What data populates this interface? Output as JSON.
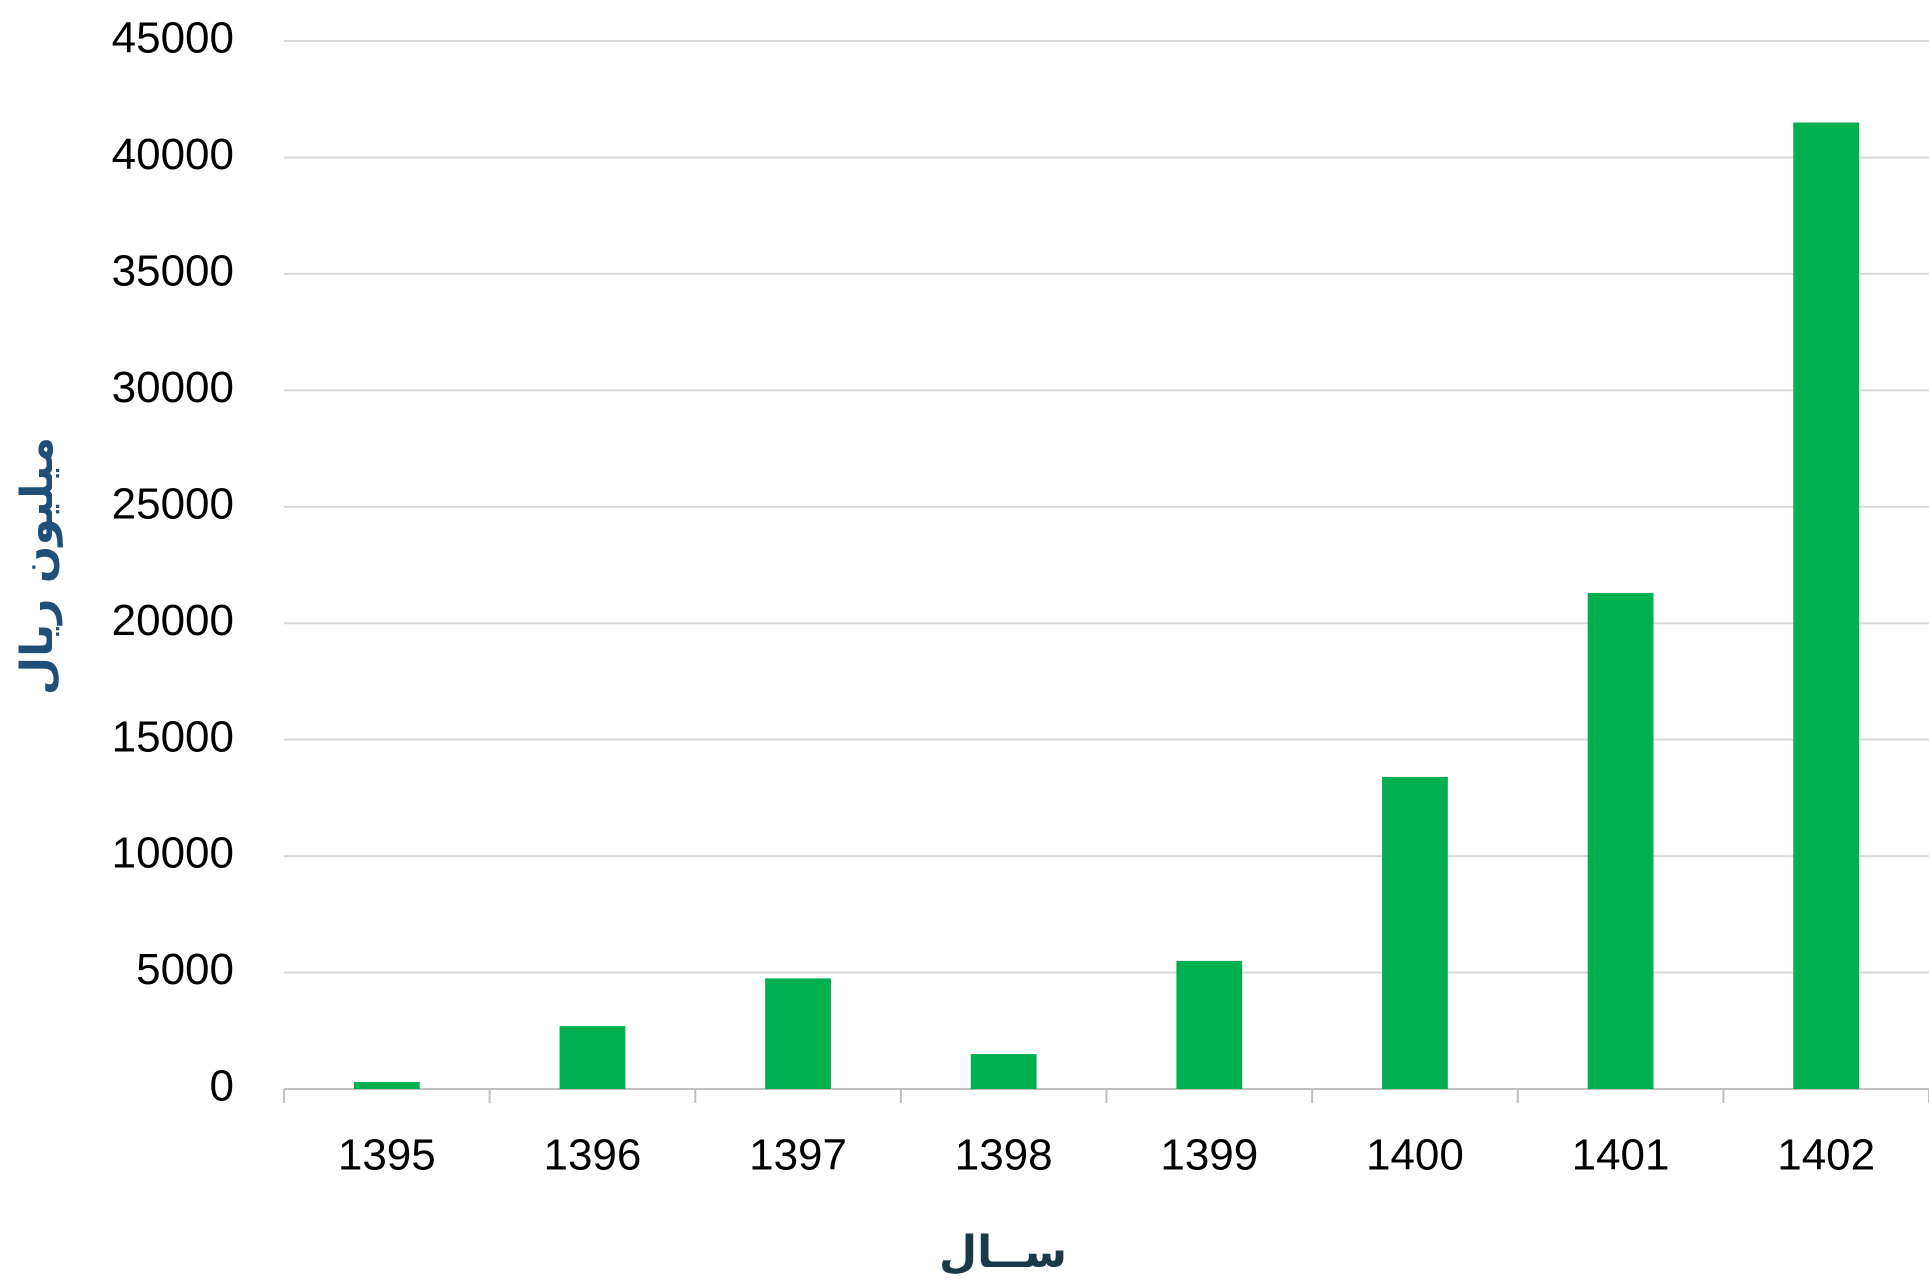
{
  "chart_data": {
    "type": "bar",
    "categories": [
      "1395",
      "1396",
      "1397",
      "1398",
      "1399",
      "1400",
      "1401",
      "1402"
    ],
    "values": [
      300,
      2700,
      4750,
      1500,
      5500,
      13400,
      21300,
      41500
    ],
    "color": "#00b050",
    "ylim": [
      0,
      45000
    ],
    "yticks": [
      0,
      5000,
      10000,
      15000,
      20000,
      25000,
      30000,
      35000,
      40000,
      45000
    ],
    "grid": true,
    "x_label": "ســال",
    "y_label": "میلیون ریال"
  }
}
